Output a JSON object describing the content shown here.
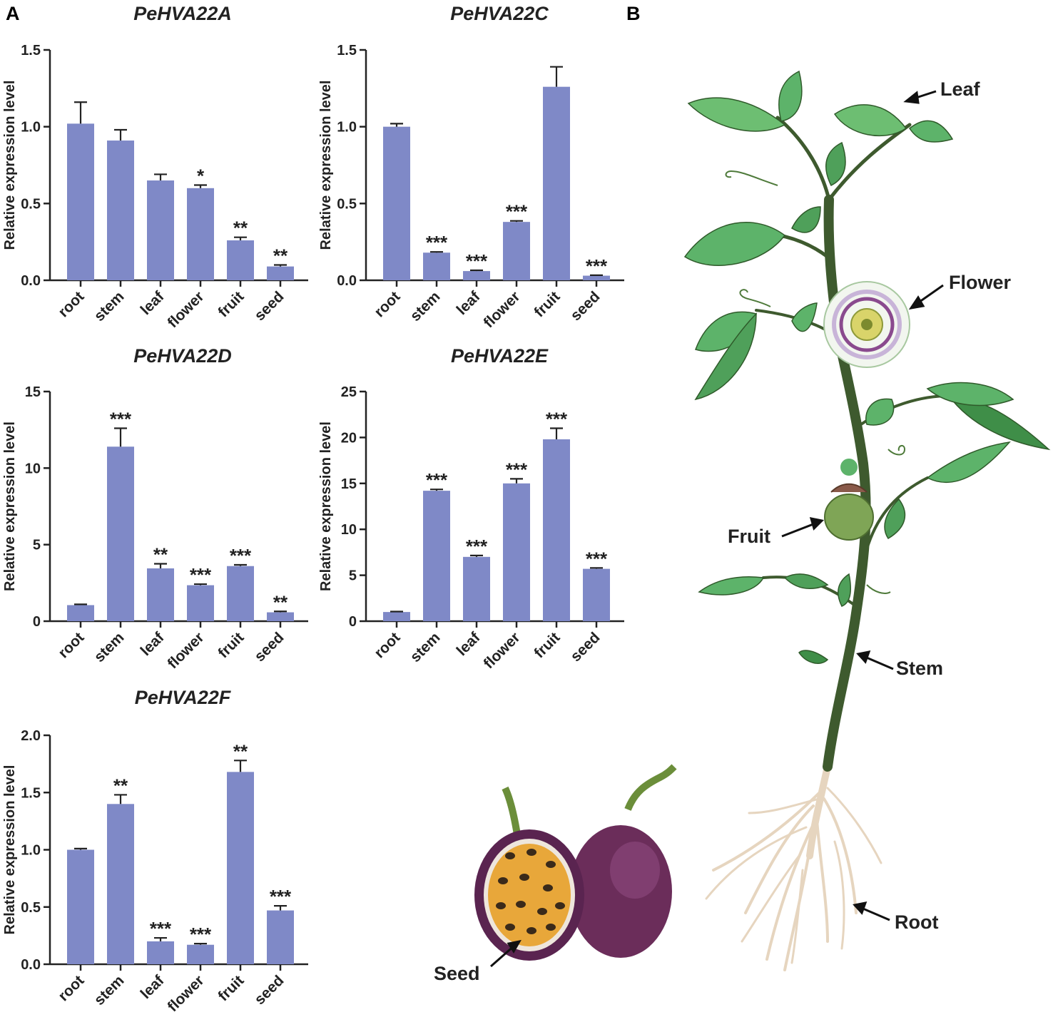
{
  "figure": {
    "panel_a_letter": "A",
    "panel_b_letter": "B",
    "plant_labels": {
      "leaf": "Leaf",
      "flower": "Flower",
      "fruit": "Fruit",
      "stem": "Stem",
      "root": "Root",
      "seed": "Seed"
    },
    "colors": {
      "bar": "#7F89C7",
      "axis": "#222222",
      "leaf_green": "#5DB36A",
      "stem_dark": "#3E5A2E",
      "root_beige": "#E6D5BF",
      "fruit_purple": "#6B2D5A",
      "pulp_orange": "#E8A73A"
    }
  },
  "chart_data": [
    {
      "type": "bar",
      "title": "PeHVA22A",
      "ylabel": "Relative expression level",
      "categories": [
        "root",
        "stem",
        "leaf",
        "flower",
        "fruit",
        "seed"
      ],
      "values": [
        1.02,
        0.91,
        0.65,
        0.6,
        0.26,
        0.09
      ],
      "errors": [
        0.14,
        0.07,
        0.04,
        0.02,
        0.02,
        0.01
      ],
      "significance": [
        "",
        "",
        "",
        "*",
        "**",
        "**"
      ],
      "ylim": [
        0,
        1.5
      ],
      "yticks": [
        "0.0",
        "0.5",
        "1.0",
        "1.5"
      ],
      "ytick_values": [
        0,
        0.5,
        1.0,
        1.5
      ]
    },
    {
      "type": "bar",
      "title": "PeHVA22C",
      "ylabel": "Relative expression level",
      "categories": [
        "root",
        "stem",
        "leaf",
        "flower",
        "fruit",
        "seed"
      ],
      "values": [
        1.0,
        0.18,
        0.06,
        0.38,
        1.26,
        0.03
      ],
      "errors": [
        0.02,
        0.005,
        0.005,
        0.007,
        0.13,
        0.003
      ],
      "significance": [
        "",
        "***",
        "***",
        "***",
        "",
        "***"
      ],
      "ylim": [
        0,
        1.5
      ],
      "yticks": [
        "0.0",
        "0.5",
        "1.0",
        "1.5"
      ],
      "ytick_values": [
        0,
        0.5,
        1.0,
        1.5
      ]
    },
    {
      "type": "bar",
      "title": "PeHVA22D",
      "ylabel": "Relative expression level",
      "categories": [
        "root",
        "stem",
        "leaf",
        "flower",
        "fruit",
        "seed"
      ],
      "values": [
        1.05,
        11.4,
        3.45,
        2.35,
        3.6,
        0.58
      ],
      "errors": [
        0.05,
        1.2,
        0.3,
        0.07,
        0.08,
        0.06
      ],
      "significance": [
        "",
        "***",
        "**",
        "***",
        "***",
        "**"
      ],
      "ylim": [
        0,
        15
      ],
      "yticks": [
        "0",
        "5",
        "10",
        "15"
      ],
      "ytick_values": [
        0,
        5,
        10,
        15
      ]
    },
    {
      "type": "bar",
      "title": "PeHVA22E",
      "ylabel": "Relative expression level",
      "categories": [
        "root",
        "stem",
        "leaf",
        "flower",
        "fruit",
        "seed"
      ],
      "values": [
        1.0,
        14.2,
        7.0,
        15.0,
        19.8,
        5.7
      ],
      "errors": [
        0.05,
        0.15,
        0.15,
        0.5,
        1.2,
        0.1
      ],
      "significance": [
        "",
        "***",
        "***",
        "***",
        "***",
        "***"
      ],
      "ylim": [
        0,
        25
      ],
      "yticks": [
        "0",
        "5",
        "10",
        "15",
        "20",
        "25"
      ],
      "ytick_values": [
        0,
        5,
        10,
        15,
        20,
        25
      ]
    },
    {
      "type": "bar",
      "title": "PeHVA22F",
      "ylabel": "Relative expression level",
      "categories": [
        "root",
        "stem",
        "leaf",
        "flower",
        "fruit",
        "seed"
      ],
      "values": [
        1.0,
        1.4,
        0.2,
        0.17,
        1.68,
        0.47
      ],
      "errors": [
        0.01,
        0.08,
        0.03,
        0.01,
        0.1,
        0.04
      ],
      "significance": [
        "",
        "**",
        "***",
        "***",
        "**",
        "***"
      ],
      "ylim": [
        0,
        2.0
      ],
      "yticks": [
        "0.0",
        "0.5",
        "1.0",
        "1.5",
        "2.0"
      ],
      "ytick_values": [
        0,
        0.5,
        1.0,
        1.5,
        2.0
      ]
    }
  ]
}
